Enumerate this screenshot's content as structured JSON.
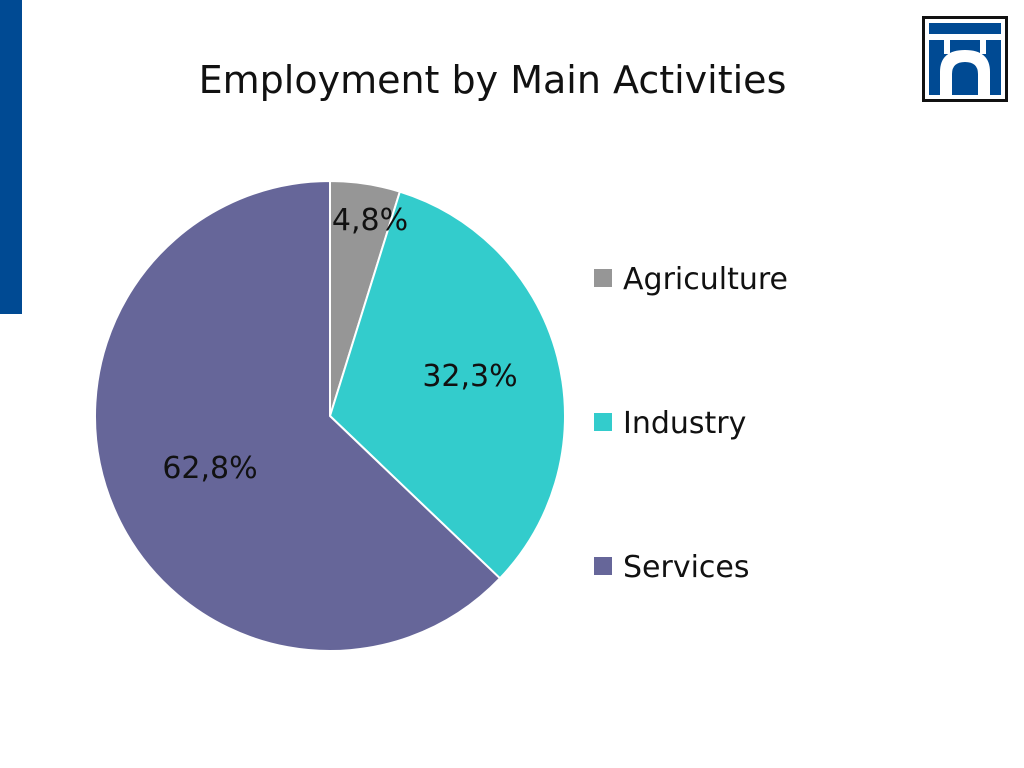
{
  "slide": {
    "accent_color": "#004a93"
  },
  "logo": {
    "icon": "bridge-arch-logo-icon",
    "border_color": "#111111",
    "fill_color": "#004a93"
  },
  "chart_data": {
    "type": "pie",
    "title": "Employment by Main Activities",
    "legend_position": "right",
    "start_angle_deg": 0,
    "direction": "clockwise",
    "slices": [
      {
        "name": "Agriculture",
        "value": 4.8,
        "label": "4,8%",
        "color": "#969696"
      },
      {
        "name": "Industry",
        "value": 32.3,
        "label": "32,3%",
        "color": "#33cccc"
      },
      {
        "name": "Services",
        "value": 62.8,
        "label": "62,8%",
        "color": "#666699"
      }
    ]
  }
}
